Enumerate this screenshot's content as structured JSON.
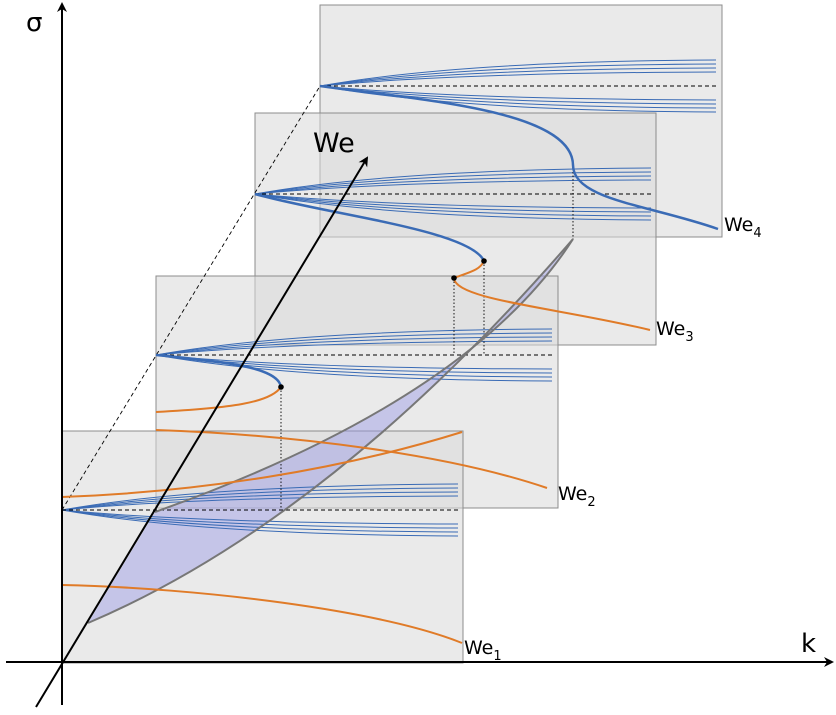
{
  "axes": {
    "x_label": "k",
    "y_label": "σ",
    "depth_label": "We"
  },
  "curve_labels": [
    {
      "base": "We",
      "sub": "1"
    },
    {
      "base": "We",
      "sub": "2"
    },
    {
      "base": "We",
      "sub": "3"
    },
    {
      "base": "We",
      "sub": "4"
    }
  ],
  "colors": {
    "panel_fill": "#d9d9d9",
    "panel_stroke": "#8c8c8c",
    "blue_branch": "#3a6bb5",
    "orange_branch": "#e07b28",
    "gray_boundary": "#777777",
    "shaded_region": "#9a9ae6",
    "axis": "#000000"
  }
}
